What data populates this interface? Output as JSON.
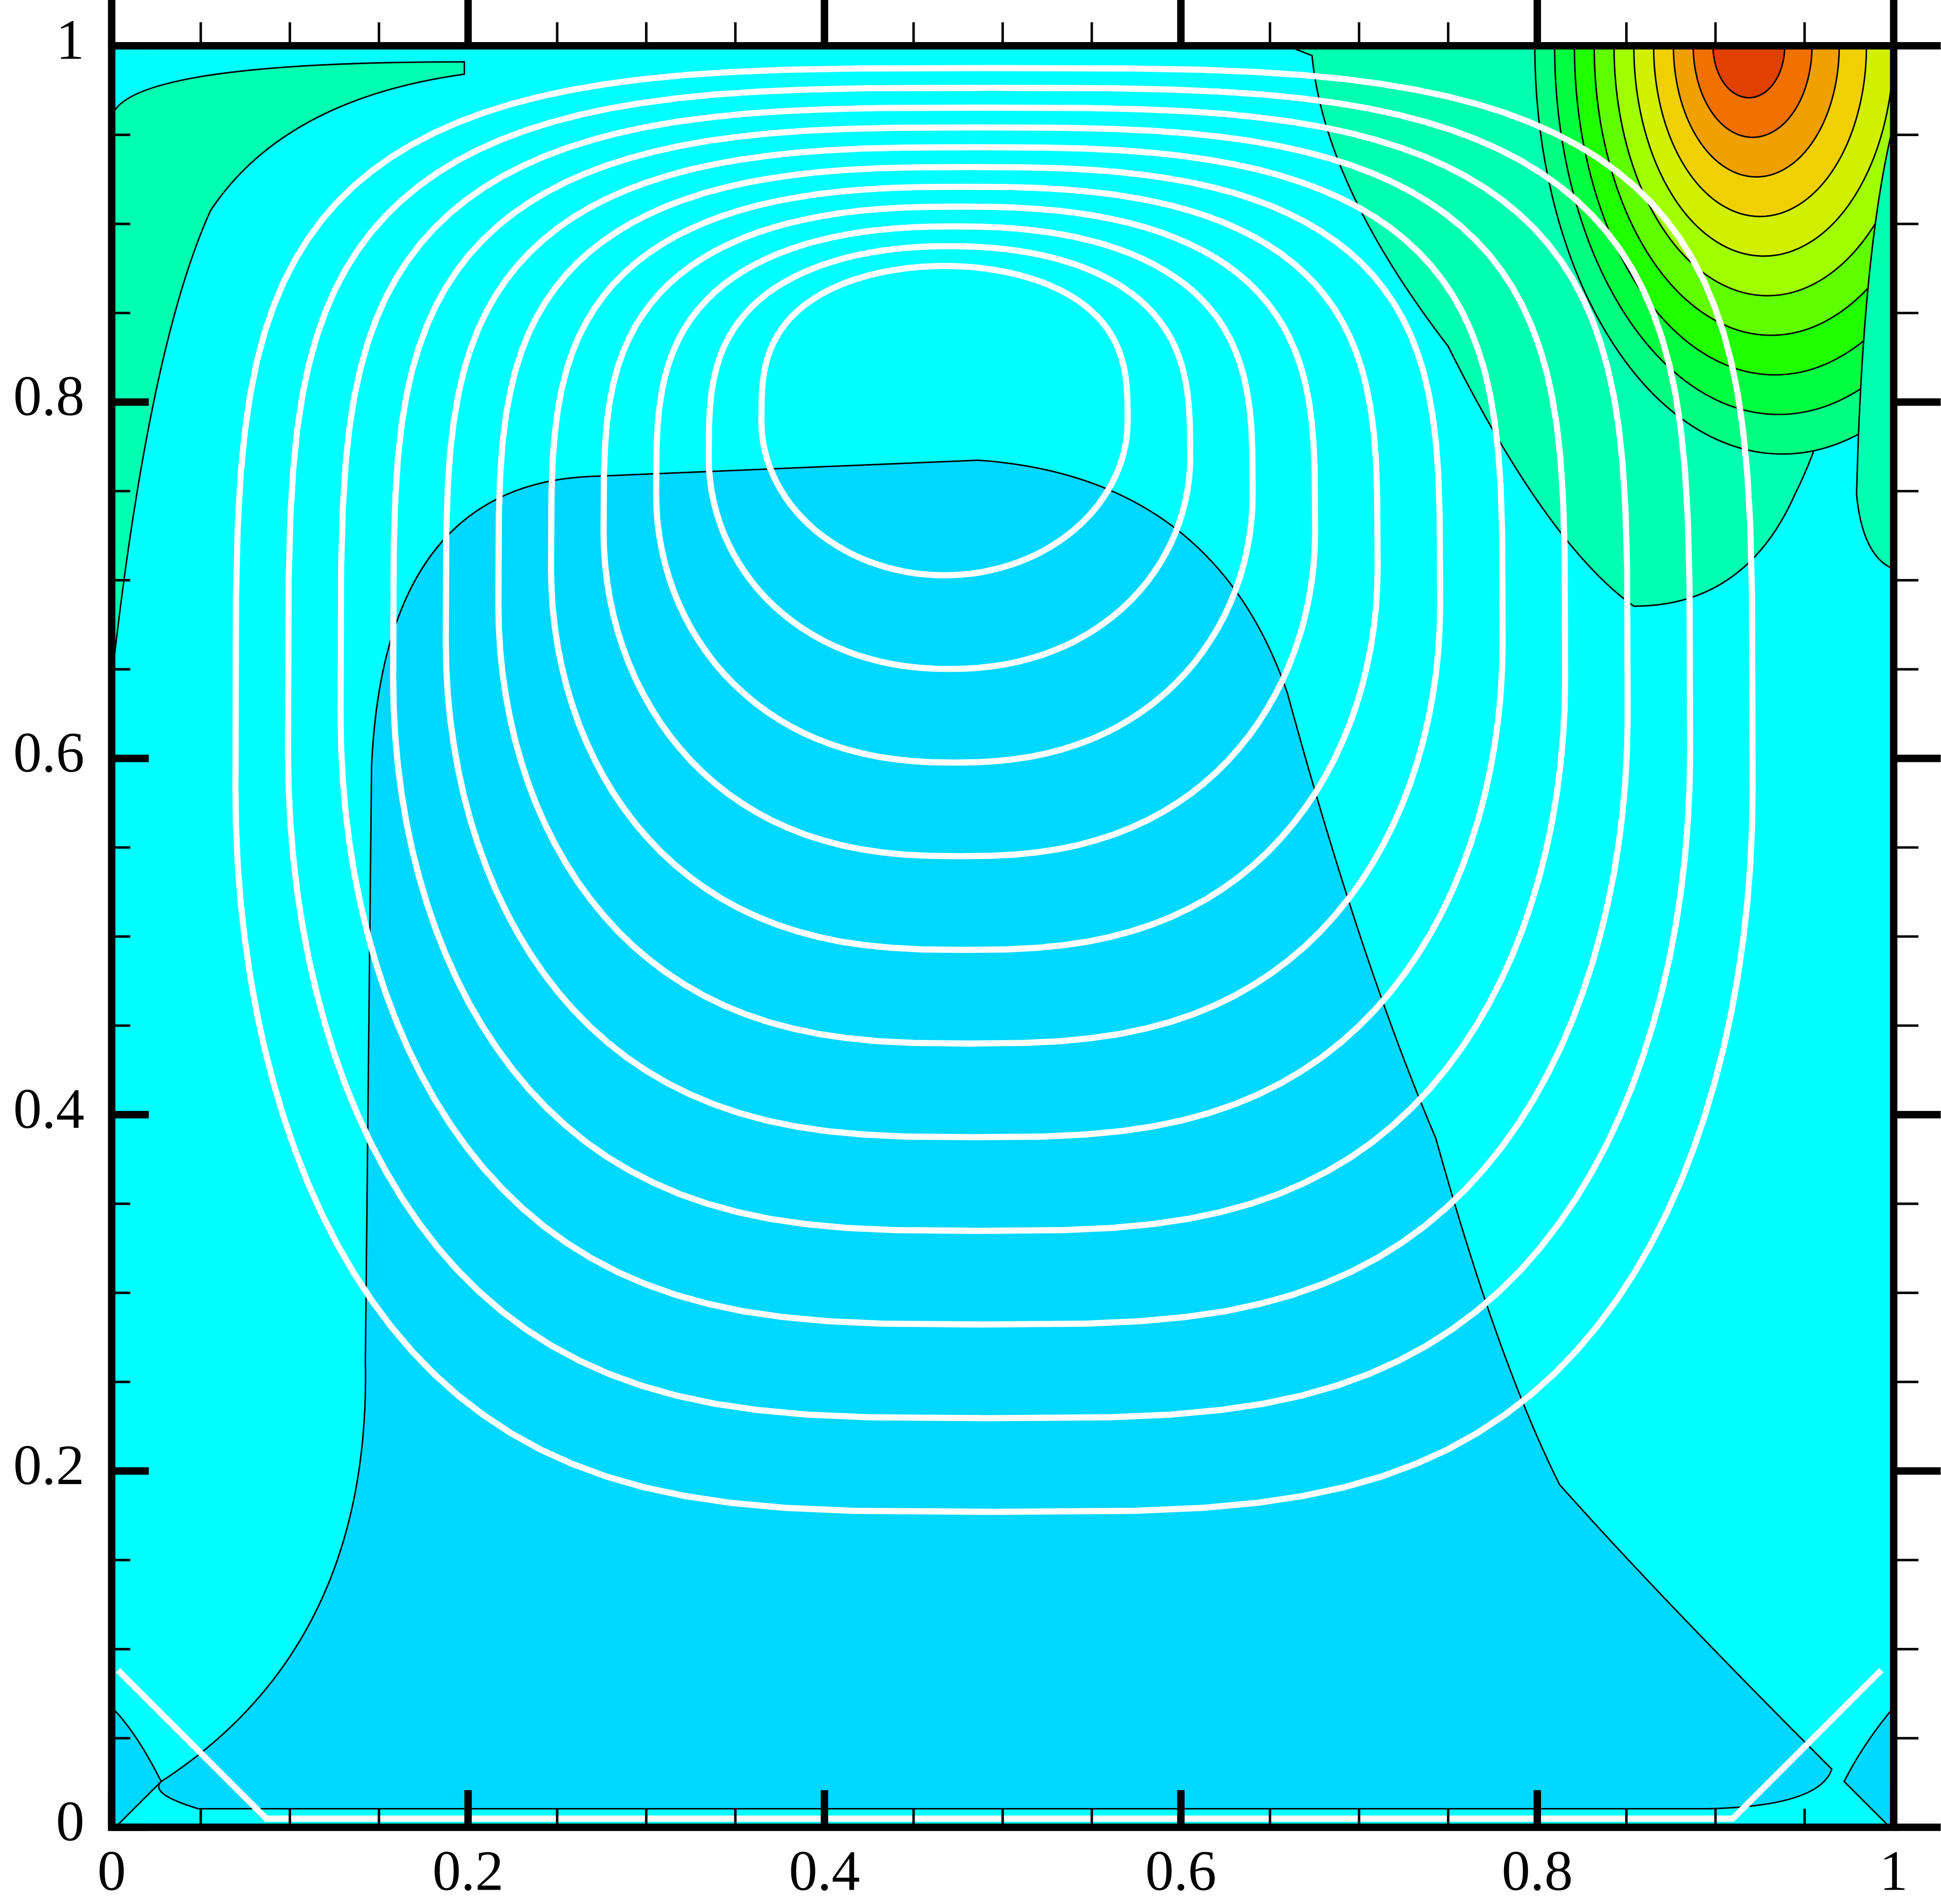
{
  "chart_data": {
    "type": "contour",
    "xlim": [
      0,
      1
    ],
    "ylim": [
      0,
      1
    ],
    "xticks": [
      0,
      0.2,
      0.4,
      0.6,
      0.8,
      1
    ],
    "yticks": [
      0,
      0.2,
      0.4,
      0.6,
      0.8,
      1
    ],
    "xminorticks": [
      0.05,
      0.1,
      0.15,
      0.25,
      0.3,
      0.35,
      0.45,
      0.5,
      0.55,
      0.65,
      0.7,
      0.75,
      0.85,
      0.9,
      0.95
    ],
    "yminorticks": [
      0.05,
      0.1,
      0.15,
      0.25,
      0.3,
      0.35,
      0.45,
      0.5,
      0.55,
      0.65,
      0.7,
      0.75,
      0.85,
      0.9,
      0.95
    ]
  }
}
